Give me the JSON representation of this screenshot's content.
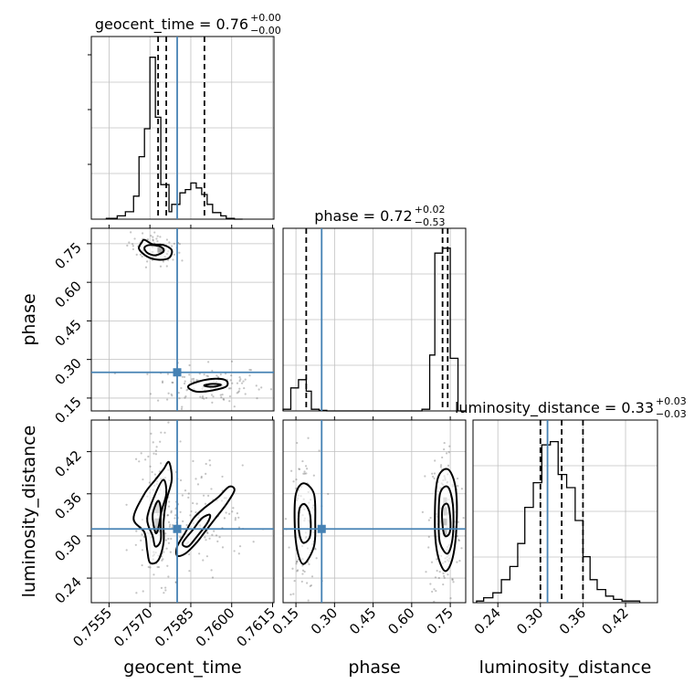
{
  "chart_data": {
    "type": "corner",
    "parameters": [
      "geocent_time",
      "phase",
      "luminosity_distance"
    ],
    "truths": {
      "geocent_time": 0.758,
      "phase": 0.25,
      "luminosity_distance": 0.31
    },
    "colors": {
      "truth": "#4682b4",
      "hist": "#000000",
      "grid": "#c0c0c0",
      "scatter": "#555555"
    },
    "titles": {
      "geocent_time": {
        "main": "geocent_time = 0.76",
        "plus": "+0.00",
        "minus": "−0.00"
      },
      "phase": {
        "main": "phase = 0.72",
        "plus": "+0.02",
        "minus": "−0.53"
      },
      "luminosity_distance": {
        "main": "luminosity_distance = 0.33",
        "plus": "+0.03",
        "minus": "−0.03"
      }
    },
    "axis_labels": {
      "x": [
        "geocent_time",
        "phase",
        "luminosity_distance"
      ],
      "y": [
        "phase",
        "luminosity_distance"
      ]
    },
    "ticks": {
      "geocent_time": {
        "values": [
          0.7555,
          0.757,
          0.7585,
          0.76,
          0.7615
        ],
        "labels": [
          "0.7555",
          "0.7570",
          "0.7585",
          "0.7600",
          "0.7615"
        ]
      },
      "phase": {
        "values": [
          0.15,
          0.3,
          0.45,
          0.6,
          0.75
        ],
        "labels": [
          "0.15",
          "0.30",
          "0.45",
          "0.60",
          "0.75"
        ]
      },
      "luminosity_distance": {
        "values": [
          0.24,
          0.3,
          0.36,
          0.42
        ],
        "labels": [
          "0.24",
          "0.30",
          "0.36",
          "0.42"
        ]
      }
    },
    "ranges": {
      "geocent_time": [
        0.75485,
        0.76155
      ],
      "phase": [
        0.1,
        0.81
      ],
      "luminosity_distance": [
        0.205,
        0.465
      ]
    },
    "quantiles": {
      "geocent_time": [
        0.7573,
        0.7576,
        0.759
      ],
      "phase": [
        0.19,
        0.72,
        0.74
      ],
      "luminosity_distance": [
        0.3,
        0.33,
        0.36
      ]
    },
    "histograms": {
      "geocent_time": {
        "edges": [
          0.7554,
          0.7558,
          0.7561,
          0.7564,
          0.7566,
          0.7568,
          0.757,
          0.7572,
          0.7574,
          0.7577,
          0.7578,
          0.7581,
          0.7583,
          0.7585,
          0.7587,
          0.7589,
          0.7591,
          0.7593,
          0.7596,
          0.7598,
          0.7601,
          0.7604
        ],
        "counts": [
          0.005,
          0.02,
          0.045,
          0.14,
          0.38,
          0.55,
          0.985,
          0.62,
          0.21,
          0.045,
          0.09,
          0.16,
          0.18,
          0.22,
          0.19,
          0.15,
          0.09,
          0.04,
          0.02,
          0.005,
          0.0
        ]
      },
      "phase": {
        "edges": [
          0.1,
          0.13,
          0.16,
          0.19,
          0.21,
          0.24,
          0.27,
          0.3,
          0.61,
          0.64,
          0.67,
          0.69,
          0.72,
          0.75,
          0.78,
          0.81
        ],
        "counts": [
          0.01,
          0.14,
          0.19,
          0.12,
          0.01,
          0.003,
          0.0,
          0.0,
          0.0,
          0.01,
          0.34,
          0.96,
          0.99,
          0.32,
          0.0
        ]
      },
      "luminosity_distance": {
        "edges": [
          0.21,
          0.22,
          0.233,
          0.245,
          0.257,
          0.268,
          0.278,
          0.29,
          0.302,
          0.314,
          0.325,
          0.337,
          0.349,
          0.36,
          0.37,
          0.38,
          0.392,
          0.403,
          0.415,
          0.427,
          0.44
        ],
        "counts": [
          0.01,
          0.03,
          0.06,
          0.14,
          0.22,
          0.36,
          0.58,
          0.73,
          0.96,
          0.98,
          0.78,
          0.7,
          0.5,
          0.28,
          0.14,
          0.08,
          0.04,
          0.02,
          0.01,
          0.01
        ]
      }
    },
    "contours": {
      "phase_vs_geocent_time": [
        {
          "level": "outer",
          "points": [
            [
              0.7568,
              0.765
            ],
            [
              0.7571,
              0.748
            ],
            [
              0.7575,
              0.745
            ],
            [
              0.7578,
              0.725
            ],
            [
              0.7577,
              0.695
            ],
            [
              0.7573,
              0.688
            ],
            [
              0.7569,
              0.7
            ],
            [
              0.7566,
              0.73
            ],
            [
              0.7567,
              0.755
            ]
          ]
        },
        {
          "level": "inner",
          "points": [
            [
              0.757,
              0.745
            ],
            [
              0.7574,
              0.738
            ],
            [
              0.7575,
              0.72
            ],
            [
              0.7572,
              0.705
            ],
            [
              0.7569,
              0.715
            ],
            [
              0.7568,
              0.735
            ]
          ]
        },
        {
          "level": "outer",
          "points": [
            [
              0.7584,
              0.195
            ],
            [
              0.7588,
              0.215
            ],
            [
              0.7594,
              0.225
            ],
            [
              0.7598,
              0.218
            ],
            [
              0.7598,
              0.195
            ],
            [
              0.7593,
              0.18
            ],
            [
              0.7587,
              0.175
            ]
          ]
        },
        {
          "level": "inner",
          "points": [
            [
              0.759,
              0.2
            ],
            [
              0.7593,
              0.205
            ],
            [
              0.7596,
              0.202
            ],
            [
              0.7594,
              0.195
            ],
            [
              0.7591,
              0.195
            ]
          ]
        }
      ],
      "luminosity_distance_vs_geocent_time": [
        {
          "level": "outer",
          "points": [
            [
              0.7564,
              0.325
            ],
            [
              0.7568,
              0.36
            ],
            [
              0.7572,
              0.38
            ],
            [
              0.7575,
              0.395
            ],
            [
              0.7577,
              0.405
            ],
            [
              0.7578,
              0.38
            ],
            [
              0.7576,
              0.35
            ],
            [
              0.7575,
              0.32
            ],
            [
              0.7575,
              0.29
            ],
            [
              0.7573,
              0.265
            ],
            [
              0.757,
              0.262
            ],
            [
              0.7569,
              0.28
            ],
            [
              0.7568,
              0.305
            ]
          ]
        },
        {
          "level": "mid",
          "points": [
            [
              0.7569,
              0.325
            ],
            [
              0.7572,
              0.36
            ],
            [
              0.7575,
              0.38
            ],
            [
              0.7576,
              0.36
            ],
            [
              0.7574,
              0.33
            ],
            [
              0.7574,
              0.295
            ],
            [
              0.7572,
              0.285
            ],
            [
              0.7571,
              0.3
            ]
          ]
        },
        {
          "level": "inner",
          "points": [
            [
              0.7571,
              0.33
            ],
            [
              0.7573,
              0.35
            ],
            [
              0.7574,
              0.335
            ],
            [
              0.7573,
              0.31
            ],
            [
              0.7572,
              0.305
            ]
          ]
        },
        {
          "level": "outer",
          "points": [
            [
              0.758,
              0.285
            ],
            [
              0.7583,
              0.305
            ],
            [
              0.7586,
              0.325
            ],
            [
              0.759,
              0.34
            ],
            [
              0.7595,
              0.355
            ],
            [
              0.7599,
              0.37
            ],
            [
              0.7601,
              0.365
            ],
            [
              0.7598,
              0.345
            ],
            [
              0.7594,
              0.325
            ],
            [
              0.759,
              0.305
            ],
            [
              0.7587,
              0.29
            ],
            [
              0.7583,
              0.275
            ],
            [
              0.758,
              0.272
            ]
          ]
        },
        {
          "level": "inner",
          "points": [
            [
              0.7582,
              0.29
            ],
            [
              0.7586,
              0.31
            ],
            [
              0.7589,
              0.325
            ],
            [
              0.7592,
              0.33
            ],
            [
              0.7591,
              0.318
            ],
            [
              0.7587,
              0.298
            ],
            [
              0.7584,
              0.285
            ]
          ]
        }
      ],
      "luminosity_distance_vs_phase": [
        {
          "level": "outer",
          "points": [
            [
              0.15,
              0.36
            ],
            [
              0.18,
              0.375
            ],
            [
              0.22,
              0.36
            ],
            [
              0.225,
              0.32
            ],
            [
              0.22,
              0.285
            ],
            [
              0.18,
              0.26
            ],
            [
              0.155,
              0.28
            ],
            [
              0.145,
              0.32
            ]
          ]
        },
        {
          "level": "inner",
          "points": [
            [
              0.165,
              0.34
            ],
            [
              0.185,
              0.345
            ],
            [
              0.205,
              0.33
            ],
            [
              0.205,
              0.3
            ],
            [
              0.18,
              0.29
            ],
            [
              0.165,
              0.3
            ],
            [
              0.16,
              0.32
            ]
          ]
        },
        {
          "level": "outer",
          "points": [
            [
              0.7,
              0.38
            ],
            [
              0.74,
              0.395
            ],
            [
              0.77,
              0.37
            ],
            [
              0.775,
              0.32
            ],
            [
              0.76,
              0.27
            ],
            [
              0.73,
              0.25
            ],
            [
              0.7,
              0.275
            ],
            [
              0.69,
              0.32
            ]
          ]
        },
        {
          "level": "mid",
          "points": [
            [
              0.71,
              0.36
            ],
            [
              0.74,
              0.37
            ],
            [
              0.76,
              0.345
            ],
            [
              0.76,
              0.3
            ],
            [
              0.74,
              0.275
            ],
            [
              0.71,
              0.29
            ],
            [
              0.705,
              0.32
            ]
          ]
        },
        {
          "level": "inner",
          "points": [
            [
              0.72,
              0.34
            ],
            [
              0.74,
              0.345
            ],
            [
              0.75,
              0.325
            ],
            [
              0.748,
              0.305
            ],
            [
              0.73,
              0.3
            ],
            [
              0.72,
              0.315
            ]
          ]
        }
      ]
    },
    "density_cores": {
      "phase_vs_geocent_time": [
        [
          0.7574,
          0.725,
          0.00025,
          0.02,
          "#111"
        ]
      ],
      "luminosity_distance_vs_geocent_time": [
        [
          0.7573,
          0.31,
          0.00025,
          0.01,
          "#000"
        ],
        [
          0.7573,
          0.32,
          0.00025,
          0.01,
          "#222"
        ],
        [
          0.7573,
          0.34,
          0.00025,
          0.015,
          "#555"
        ]
      ],
      "luminosity_distance_vs_phase": [
        [
          0.73,
          0.305,
          0.015,
          0.01,
          "#000"
        ],
        [
          0.73,
          0.32,
          0.015,
          0.01,
          "#000"
        ],
        [
          0.73,
          0.335,
          0.015,
          0.012,
          "#444"
        ],
        [
          0.73,
          0.35,
          0.015,
          0.01,
          "#888"
        ]
      ]
    },
    "scatter_clouds": {
      "phase_vs_geocent_time": [
        {
          "center": [
            0.7572,
            0.73
          ],
          "spread": [
            0.0005,
            0.03
          ],
          "count": 90,
          "tilt": -15
        },
        {
          "center": [
            0.7592,
            0.2
          ],
          "spread": [
            0.001,
            0.04
          ],
          "count": 120,
          "tilt": 0
        }
      ],
      "luminosity_distance_vs_geocent_time": [
        {
          "center": [
            0.7573,
            0.33
          ],
          "spread": [
            0.0004,
            0.06
          ],
          "count": 140,
          "tilt": 0
        },
        {
          "center": [
            0.759,
            0.32
          ],
          "spread": [
            0.001,
            0.04
          ],
          "count": 120,
          "tilt": 40
        }
      ],
      "luminosity_distance_vs_phase": [
        {
          "center": [
            0.18,
            0.32
          ],
          "spread": [
            0.03,
            0.05
          ],
          "count": 110,
          "tilt": 0
        },
        {
          "center": [
            0.73,
            0.32
          ],
          "spread": [
            0.03,
            0.06
          ],
          "count": 160,
          "tilt": 0
        }
      ]
    }
  }
}
